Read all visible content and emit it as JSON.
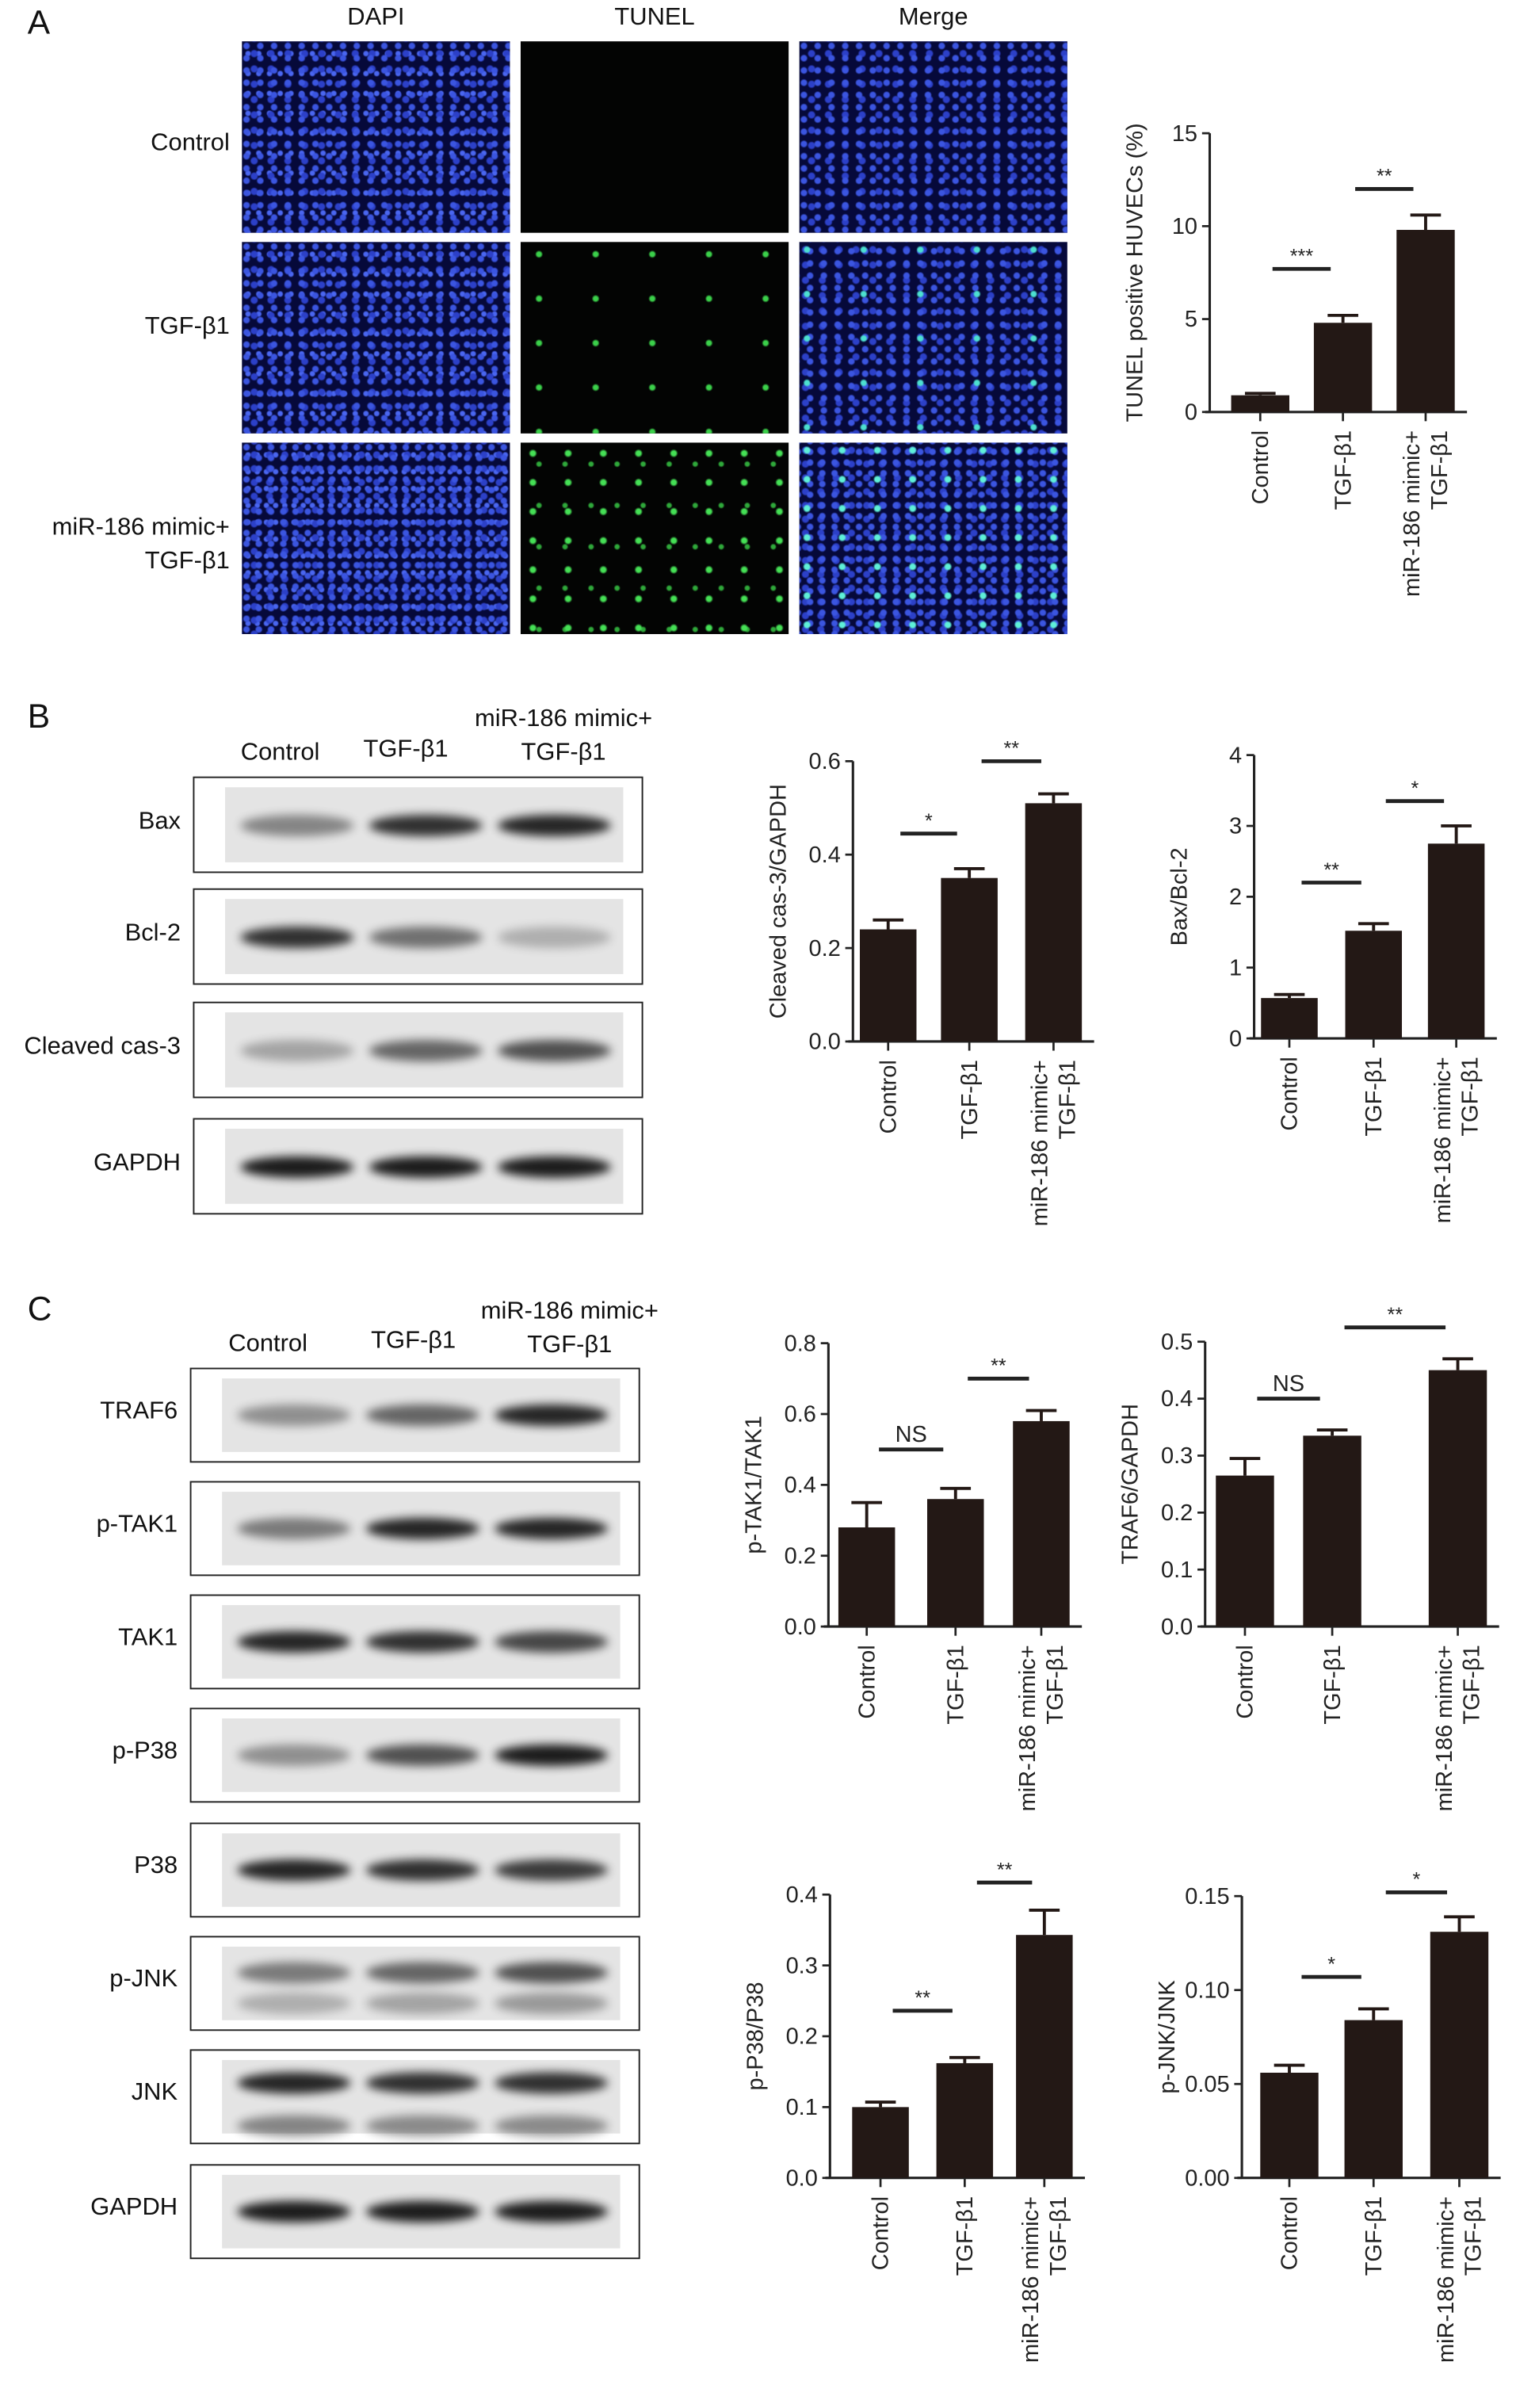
{
  "panels": {
    "a": "A",
    "b": "B",
    "c": "C"
  },
  "panel_a": {
    "columns": [
      "DAPI",
      "TUNEL",
      "Merge"
    ],
    "rows": [
      {
        "line1": "Control",
        "line2": ""
      },
      {
        "line1": "TGF-β1",
        "line2": ""
      },
      {
        "line1": "miR-186 mimic+",
        "line2": "TGF-β1"
      }
    ]
  },
  "panel_b": {
    "lanes": {
      "control": "Control",
      "tgf": "TGF-β1",
      "mimic_line1": "miR-186 mimic+",
      "mimic_line2": "TGF-β1"
    },
    "blots": [
      "Bax",
      "Bcl-2",
      "Cleaved cas-3",
      "GAPDH"
    ]
  },
  "panel_c": {
    "lanes": {
      "control": "Control",
      "tgf": "TGF-β1",
      "mimic_line1": "miR-186 mimic+",
      "mimic_line2": "TGF-β1"
    },
    "blots": [
      "TRAF6",
      "p-TAK1",
      "TAK1",
      "p-P38",
      "P38",
      "p-JNK",
      "JNK",
      "GAPDH"
    ]
  },
  "chart_data": [
    {
      "type": "bar",
      "panel": "A",
      "ylabel": "TUNEL positive HUVECs (%)",
      "ylim": [
        0,
        15
      ],
      "yticks": [
        "0",
        "5",
        "10",
        "15"
      ],
      "categories": [
        "Control",
        "TGF-β1",
        "miR-186 mimic+ TGF-β1"
      ],
      "values": [
        0.9,
        4.8,
        9.8
      ],
      "errors": [
        0.1,
        0.4,
        0.8
      ],
      "significance": [
        {
          "from": 0,
          "to": 1,
          "label": "***",
          "y": 7.7
        },
        {
          "from": 1,
          "to": 2,
          "label": "**",
          "y": 12.0
        }
      ]
    },
    {
      "type": "bar",
      "panel": "B",
      "ylabel": "Cleaved cas-3/GAPDH",
      "ylim": [
        0,
        0.6
      ],
      "yticks": [
        "0.0",
        "0.2",
        "0.4",
        "0.6"
      ],
      "categories": [
        "Control",
        "TGF-β1",
        "miR-186 mimic+ TGF-β1"
      ],
      "values": [
        0.24,
        0.35,
        0.51
      ],
      "errors": [
        0.02,
        0.02,
        0.02
      ],
      "significance": [
        {
          "from": 0,
          "to": 1,
          "label": "*",
          "y": 0.445
        },
        {
          "from": 1,
          "to": 2,
          "label": "**",
          "y": 0.6
        }
      ]
    },
    {
      "type": "bar",
      "panel": "B",
      "ylabel": "Bax/Bcl-2",
      "ylim": [
        0,
        4
      ],
      "yticks": [
        "0",
        "1",
        "2",
        "3",
        "4"
      ],
      "categories": [
        "Control",
        "TGF-β1",
        "miR-186 mimic+ TGF-β1"
      ],
      "values": [
        0.57,
        1.52,
        2.75
      ],
      "errors": [
        0.05,
        0.1,
        0.25
      ],
      "significance": [
        {
          "from": 0,
          "to": 1,
          "label": "**",
          "y": 2.2
        },
        {
          "from": 1,
          "to": 2,
          "label": "*",
          "y": 3.35
        }
      ]
    },
    {
      "type": "bar",
      "panel": "C",
      "ylabel": "p-TAK1/TAK1",
      "ylim": [
        0,
        0.8
      ],
      "yticks": [
        "0.0",
        "0.2",
        "0.4",
        "0.6",
        "0.8"
      ],
      "categories": [
        "Control",
        "TGF-β1",
        "miR-186 mimic+ TGF-β1"
      ],
      "values": [
        0.28,
        0.36,
        0.58
      ],
      "errors": [
        0.07,
        0.03,
        0.03
      ],
      "significance": [
        {
          "from": 0,
          "to": 1,
          "label": "NS",
          "y": 0.5
        },
        {
          "from": 1,
          "to": 2,
          "label": "**",
          "y": 0.7
        }
      ]
    },
    {
      "type": "bar",
      "panel": "C",
      "ylabel": "TRAF6/GAPDH",
      "ylim": [
        0,
        0.5
      ],
      "yticks": [
        "0.0",
        "0.1",
        "0.2",
        "0.3",
        "0.4",
        "0.5"
      ],
      "categories": [
        "Control",
        "TGF-β1",
        "miR-186 mimic+ TGF-β1"
      ],
      "values": [
        0.265,
        0.335,
        0.45
      ],
      "errors": [
        0.03,
        0.01,
        0.02
      ],
      "significance": [
        {
          "from": 0,
          "to": 1,
          "label": "NS",
          "y": 0.4
        },
        {
          "from": 1,
          "to": 2,
          "label": "**",
          "y": 0.525
        }
      ]
    },
    {
      "type": "bar",
      "panel": "C",
      "ylabel": "p-P38/P38",
      "ylim": [
        0,
        0.4
      ],
      "yticks": [
        "0.0",
        "0.1",
        "0.2",
        "0.3",
        "0.4"
      ],
      "categories": [
        "Control",
        "TGF-β1",
        "miR-186 mimic+ TGF-β1"
      ],
      "values": [
        0.1,
        0.162,
        0.343
      ],
      "errors": [
        0.007,
        0.008,
        0.035
      ],
      "significance": [
        {
          "from": 0,
          "to": 1,
          "label": "**",
          "y": 0.236
        },
        {
          "from": 1,
          "to": 2,
          "label": "**",
          "y": 0.417
        }
      ]
    },
    {
      "type": "bar",
      "panel": "C",
      "ylabel": "p-JNK/JNK",
      "ylim": [
        0,
        0.15
      ],
      "yticks": [
        "0.00",
        "0.05",
        "0.10",
        "0.15"
      ],
      "categories": [
        "Control",
        "TGF-β1",
        "miR-186 mimic+ TGF-β1"
      ],
      "values": [
        0.056,
        0.084,
        0.131
      ],
      "errors": [
        0.004,
        0.006,
        0.008
      ],
      "significance": [
        {
          "from": 0,
          "to": 1,
          "label": "*",
          "y": 0.107
        },
        {
          "from": 1,
          "to": 2,
          "label": "*",
          "y": 0.152
        }
      ]
    }
  ]
}
